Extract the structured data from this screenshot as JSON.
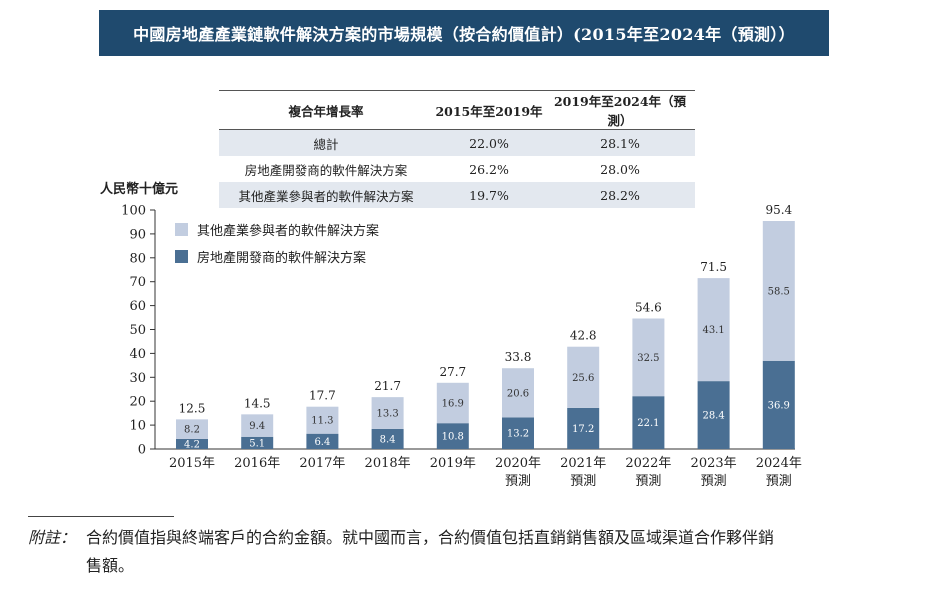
{
  "title": "中國房地產產業鏈軟件解決方案的市場規模（按合約價值計）(2015年至2024年（預測））",
  "cagr_table": {
    "headers": [
      "複合年增長率",
      "2015年至2019年",
      "2019年至2024年（預測）"
    ],
    "rows": [
      {
        "label": "總計",
        "v1": "22.0%",
        "v2": "28.1%"
      },
      {
        "label": "房地產開發商的軟件解決方案",
        "v1": "26.2%",
        "v2": "28.0%"
      },
      {
        "label": "其他產業參與者的軟件解決方案",
        "v1": "19.7%",
        "v2": "28.2%"
      }
    ]
  },
  "chart_data": {
    "type": "bar",
    "stacked": true,
    "ylabel": "人民幣十億元",
    "ylim": [
      0,
      100
    ],
    "yticks": [
      0,
      10,
      20,
      30,
      40,
      50,
      60,
      70,
      80,
      90,
      100
    ],
    "categories": [
      {
        "line1": "2015年",
        "line2": ""
      },
      {
        "line1": "2016年",
        "line2": ""
      },
      {
        "line1": "2017年",
        "line2": ""
      },
      {
        "line1": "2018年",
        "line2": ""
      },
      {
        "line1": "2019年",
        "line2": ""
      },
      {
        "line1": "2020年",
        "line2": "預測"
      },
      {
        "line1": "2021年",
        "line2": "預測"
      },
      {
        "line1": "2022年",
        "line2": "預測"
      },
      {
        "line1": "2023年",
        "line2": "預測"
      },
      {
        "line1": "2024年",
        "line2": "預測"
      }
    ],
    "series": [
      {
        "name": "房地產開發商的軟件解決方案",
        "color": "#4a6f93",
        "values": [
          4.2,
          5.1,
          6.4,
          8.4,
          10.8,
          13.2,
          17.2,
          22.1,
          28.4,
          36.9
        ]
      },
      {
        "name": "其他產業參與者的軟件解決方案",
        "color": "#c2cde0",
        "values": [
          8.2,
          9.4,
          11.3,
          13.3,
          16.9,
          20.6,
          25.6,
          32.5,
          43.1,
          58.5
        ]
      }
    ],
    "totals": [
      12.5,
      14.5,
      17.7,
      21.7,
      27.7,
      33.8,
      42.8,
      54.6,
      71.5,
      95.4
    ],
    "legend_position": "top-left"
  },
  "footnote": {
    "label": "附註：",
    "line1": "合約價值指與終端客戶的合約金額。就中國而言，合約價值包括直銷銷售額及區域渠道合作夥伴銷",
    "line2": "售額。"
  }
}
